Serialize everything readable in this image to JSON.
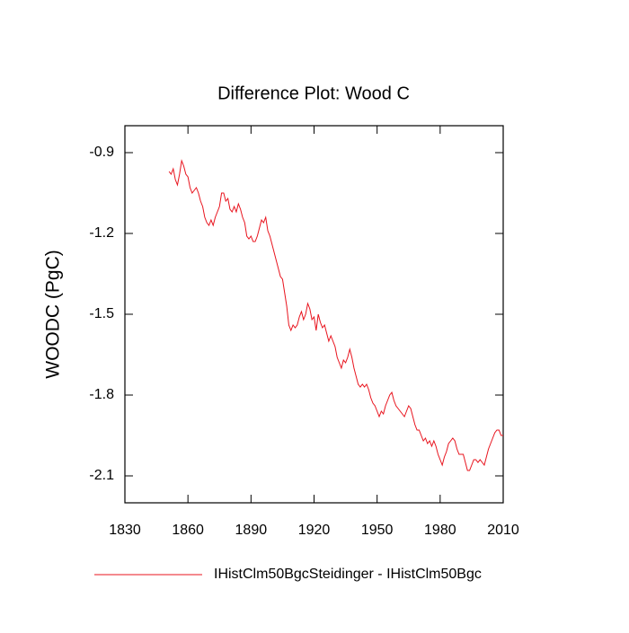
{
  "chart_data": {
    "type": "line",
    "title": "Difference Plot: Wood C",
    "y_label": "WOODC  (PgC)",
    "x": [
      1851,
      1852,
      1853,
      1854,
      1855,
      1856,
      1857,
      1858,
      1859,
      1860,
      1861,
      1862,
      1863,
      1864,
      1865,
      1866,
      1867,
      1868,
      1869,
      1870,
      1871,
      1872,
      1873,
      1874,
      1875,
      1876,
      1877,
      1878,
      1879,
      1880,
      1881,
      1882,
      1883,
      1884,
      1885,
      1886,
      1887,
      1888,
      1889,
      1890,
      1891,
      1892,
      1893,
      1894,
      1895,
      1896,
      1897,
      1898,
      1899,
      1900,
      1901,
      1902,
      1903,
      1904,
      1905,
      1906,
      1907,
      1908,
      1909,
      1910,
      1911,
      1912,
      1913,
      1914,
      1915,
      1916,
      1917,
      1918,
      1919,
      1920,
      1921,
      1922,
      1923,
      1924,
      1925,
      1926,
      1927,
      1928,
      1929,
      1930,
      1931,
      1932,
      1933,
      1934,
      1935,
      1936,
      1937,
      1938,
      1939,
      1940,
      1941,
      1942,
      1943,
      1944,
      1945,
      1946,
      1947,
      1948,
      1949,
      1950,
      1951,
      1952,
      1953,
      1954,
      1955,
      1956,
      1957,
      1958,
      1959,
      1960,
      1961,
      1962,
      1963,
      1964,
      1965,
      1966,
      1967,
      1968,
      1969,
      1970,
      1971,
      1972,
      1973,
      1974,
      1975,
      1976,
      1977,
      1978,
      1979,
      1980,
      1981,
      1982,
      1983,
      1984,
      1985,
      1986,
      1987,
      1988,
      1989,
      1990,
      1991,
      1992,
      1993,
      1994,
      1995,
      1996,
      1997,
      1998,
      1999,
      2000,
      2001,
      2002,
      2003,
      2004,
      2005,
      2006,
      2007,
      2008,
      2009,
      2010
    ],
    "series": [
      {
        "name": "IHistClm50BgcSteidinger - IHistClm50Bgc",
        "color": "#e8141e",
        "values": [
          -0.97,
          -0.98,
          -0.96,
          -1.0,
          -1.02,
          -0.98,
          -0.93,
          -0.95,
          -0.98,
          -0.99,
          -1.03,
          -1.05,
          -1.04,
          -1.03,
          -1.05,
          -1.08,
          -1.1,
          -1.14,
          -1.16,
          -1.17,
          -1.15,
          -1.17,
          -1.14,
          -1.12,
          -1.1,
          -1.05,
          -1.05,
          -1.08,
          -1.07,
          -1.11,
          -1.12,
          -1.1,
          -1.12,
          -1.09,
          -1.11,
          -1.14,
          -1.16,
          -1.21,
          -1.22,
          -1.21,
          -1.23,
          -1.23,
          -1.21,
          -1.18,
          -1.15,
          -1.16,
          -1.14,
          -1.19,
          -1.21,
          -1.24,
          -1.27,
          -1.3,
          -1.33,
          -1.36,
          -1.37,
          -1.42,
          -1.47,
          -1.54,
          -1.56,
          -1.54,
          -1.55,
          -1.54,
          -1.51,
          -1.49,
          -1.52,
          -1.5,
          -1.46,
          -1.48,
          -1.52,
          -1.51,
          -1.56,
          -1.5,
          -1.53,
          -1.55,
          -1.54,
          -1.57,
          -1.6,
          -1.58,
          -1.6,
          -1.62,
          -1.66,
          -1.68,
          -1.7,
          -1.67,
          -1.68,
          -1.66,
          -1.63,
          -1.66,
          -1.7,
          -1.73,
          -1.76,
          -1.77,
          -1.76,
          -1.77,
          -1.76,
          -1.78,
          -1.81,
          -1.83,
          -1.84,
          -1.86,
          -1.88,
          -1.86,
          -1.87,
          -1.84,
          -1.82,
          -1.8,
          -1.79,
          -1.82,
          -1.84,
          -1.85,
          -1.86,
          -1.87,
          -1.88,
          -1.86,
          -1.84,
          -1.85,
          -1.88,
          -1.91,
          -1.93,
          -1.93,
          -1.95,
          -1.97,
          -1.96,
          -1.98,
          -1.97,
          -1.99,
          -1.97,
          -1.99,
          -2.02,
          -2.04,
          -2.06,
          -2.03,
          -2.01,
          -1.98,
          -1.97,
          -1.96,
          -1.97,
          -2.0,
          -2.02,
          -2.02,
          -2.02,
          -2.05,
          -2.08,
          -2.08,
          -2.06,
          -2.04,
          -2.04,
          -2.05,
          -2.04,
          -2.05,
          -2.06,
          -2.03,
          -2.0,
          -1.98,
          -1.96,
          -1.94,
          -1.93,
          -1.93,
          -1.95,
          -1.95
        ]
      }
    ],
    "xlim": [
      1830,
      2010
    ],
    "xticks": [
      1830,
      1860,
      1890,
      1920,
      1950,
      1980,
      2010
    ],
    "ylim": [
      -2.2,
      -0.8
    ],
    "yticks": [
      -0.9,
      -1.2,
      -1.5,
      -1.8,
      -2.1
    ],
    "grid": false
  }
}
